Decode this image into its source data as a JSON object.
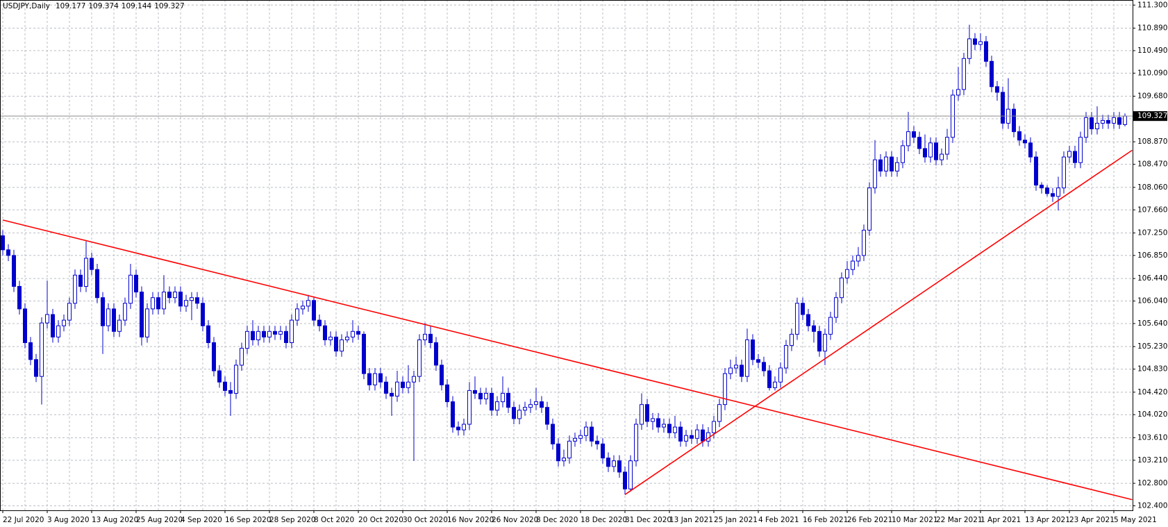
{
  "chart_data": {
    "type": "candlestick",
    "title": "USDJPY,Daily",
    "categories": [
      "22 Jul 2020",
      null,
      null,
      null,
      null,
      null,
      null,
      null,
      "3 Aug 2020",
      null,
      null,
      null,
      null,
      null,
      null,
      null,
      "13 Aug 2020",
      null,
      null,
      null,
      null,
      null,
      null,
      null,
      "25 Aug 2020",
      null,
      null,
      null,
      null,
      null,
      null,
      null,
      "4 Sep 2020",
      null,
      null,
      null,
      null,
      null,
      null,
      null,
      "16 Sep 2020",
      null,
      null,
      null,
      null,
      null,
      null,
      null,
      "28 Sep 2020",
      null,
      null,
      null,
      null,
      null,
      null,
      null,
      "8 Oct 2020",
      null,
      null,
      null,
      null,
      null,
      null,
      null,
      "20 Oct 2020",
      null,
      null,
      null,
      null,
      null,
      null,
      null,
      "30 Oct 2020",
      null,
      null,
      null,
      null,
      null,
      null,
      null,
      "16 Nov 2020",
      null,
      null,
      null,
      null,
      null,
      null,
      null,
      "26 Nov 2020",
      null,
      null,
      null,
      null,
      null,
      null,
      null,
      "8 Dec 2020",
      null,
      null,
      null,
      null,
      null,
      null,
      null,
      "18 Dec 2020",
      null,
      null,
      null,
      null,
      null,
      null,
      null,
      "31 Dec 2020",
      null,
      null,
      null,
      null,
      null,
      null,
      null,
      "13 Jan 2021",
      null,
      null,
      null,
      null,
      null,
      null,
      null,
      "25 Jan 2021",
      null,
      null,
      null,
      null,
      null,
      null,
      null,
      "4 Feb 2021",
      null,
      null,
      null,
      null,
      null,
      null,
      null,
      "16 Feb 2021",
      null,
      null,
      null,
      null,
      null,
      null,
      null,
      "26 Feb 2021",
      null,
      null,
      null,
      null,
      null,
      null,
      null,
      "10 Mar 2021",
      null,
      null,
      null,
      null,
      null,
      null,
      null,
      "22 Mar 2021",
      null,
      null,
      null,
      null,
      null,
      null,
      null,
      "1 Apr 2021",
      null,
      null,
      null,
      null,
      null,
      null,
      null,
      "13 Apr 2021",
      null,
      null,
      null,
      null,
      null,
      null,
      null,
      "23 Apr 2021",
      null,
      null,
      null,
      null,
      null,
      null,
      null,
      "5 May 2021",
      null,
      null
    ],
    "open": [
      107.2,
      106.95,
      106.85,
      106.3,
      105.9,
      105.3,
      105.0,
      104.7,
      105.65,
      105.8,
      105.4,
      105.6,
      105.7,
      106.0,
      106.5,
      106.3,
      106.8,
      106.6,
      106.1,
      105.6,
      105.9,
      105.5,
      105.7,
      106.0,
      106.5,
      106.2,
      105.4,
      105.9,
      106.1,
      105.9,
      106.2,
      106.1,
      106.2,
      105.95,
      106.05,
      106.1,
      106.0,
      105.6,
      105.3,
      104.8,
      104.6,
      104.45,
      104.4,
      104.9,
      105.2,
      105.5,
      105.35,
      105.5,
      105.4,
      105.5,
      105.45,
      105.5,
      105.3,
      105.7,
      105.9,
      105.95,
      106.05,
      105.7,
      105.6,
      105.35,
      105.4,
      105.15,
      105.35,
      105.4,
      105.5,
      105.45,
      104.75,
      104.55,
      104.75,
      104.6,
      104.4,
      104.35,
      104.6,
      104.5,
      104.6,
      104.7,
      105.35,
      105.45,
      105.3,
      104.9,
      104.55,
      104.25,
      103.8,
      103.75,
      103.85,
      104.45,
      104.4,
      104.3,
      104.4,
      104.1,
      104.25,
      104.4,
      104.15,
      103.95,
      104.1,
      104.15,
      104.2,
      104.25,
      104.15,
      103.85,
      103.5,
      103.2,
      103.25,
      103.55,
      103.6,
      103.65,
      103.8,
      103.55,
      103.5,
      103.25,
      103.1,
      103.2,
      103.0,
      102.7,
      103.2,
      103.85,
      104.2,
      103.9,
      103.95,
      103.8,
      103.85,
      103.7,
      103.8,
      103.55,
      103.65,
      103.6,
      103.75,
      103.55,
      103.7,
      103.9,
      104.2,
      104.75,
      104.85,
      104.9,
      104.7,
      105.35,
      105.0,
      104.95,
      104.8,
      104.5,
      104.6,
      104.85,
      105.25,
      105.45,
      106.0,
      105.8,
      105.6,
      105.5,
      105.15,
      105.45,
      105.75,
      106.1,
      106.45,
      106.6,
      106.75,
      106.85,
      107.3,
      108.05,
      108.55,
      108.35,
      108.6,
      108.35,
      108.5,
      108.8,
      109.05,
      108.95,
      108.75,
      108.6,
      108.85,
      108.55,
      108.65,
      108.95,
      109.7,
      109.8,
      110.35,
      110.7,
      110.6,
      110.65,
      110.3,
      109.85,
      109.75,
      109.2,
      109.45,
      109.05,
      108.9,
      108.85,
      108.6,
      108.1,
      108.05,
      107.95,
      107.9,
      108.05,
      108.6,
      108.7,
      108.5,
      108.95,
      109.3,
      109.1,
      109.2,
      109.25,
      109.2,
      109.3,
      109.177
    ],
    "high": [
      107.3,
      107.05,
      106.95,
      106.4,
      106.0,
      105.4,
      105.1,
      105.75,
      106.4,
      105.9,
      105.7,
      105.8,
      106.1,
      106.6,
      106.6,
      107.1,
      106.9,
      106.7,
      106.2,
      106.0,
      106.0,
      105.8,
      106.1,
      106.7,
      106.6,
      106.3,
      106.0,
      106.2,
      106.2,
      106.5,
      106.3,
      106.3,
      106.3,
      106.15,
      106.2,
      106.2,
      106.1,
      105.7,
      105.4,
      104.9,
      104.7,
      104.6,
      105.0,
      105.3,
      105.6,
      105.7,
      105.6,
      105.6,
      105.6,
      105.6,
      105.6,
      105.6,
      105.8,
      106.0,
      106.05,
      106.15,
      106.1,
      105.8,
      105.7,
      105.5,
      105.5,
      105.45,
      105.5,
      105.7,
      105.6,
      105.5,
      104.85,
      104.85,
      104.85,
      104.7,
      104.5,
      104.8,
      104.7,
      104.9,
      104.8,
      105.45,
      105.65,
      105.6,
      105.4,
      105.0,
      104.65,
      104.35,
      103.9,
      103.95,
      104.6,
      104.7,
      104.5,
      104.5,
      104.5,
      104.35,
      104.7,
      104.5,
      104.25,
      104.2,
      104.25,
      104.3,
      104.5,
      104.35,
      104.25,
      103.95,
      103.6,
      103.4,
      103.65,
      103.7,
      103.75,
      103.9,
      103.9,
      103.65,
      103.6,
      103.35,
      103.3,
      103.3,
      103.1,
      103.3,
      103.95,
      104.4,
      104.3,
      104.05,
      104.05,
      103.95,
      103.95,
      104.0,
      103.9,
      103.75,
      103.75,
      103.85,
      103.85,
      103.8,
      104.0,
      104.3,
      104.85,
      105.0,
      105.05,
      105.0,
      105.55,
      105.45,
      105.1,
      105.05,
      104.9,
      104.7,
      104.95,
      105.35,
      105.55,
      106.1,
      106.1,
      105.9,
      105.7,
      105.6,
      105.55,
      105.85,
      106.2,
      106.55,
      106.75,
      106.85,
      107.0,
      107.4,
      108.15,
      108.9,
      108.65,
      108.7,
      108.7,
      108.6,
      108.9,
      109.4,
      109.15,
      109.05,
      109.0,
      108.95,
      108.95,
      108.75,
      109.1,
      109.8,
      110.2,
      110.45,
      110.95,
      110.8,
      110.8,
      110.75,
      110.4,
      109.95,
      109.85,
      110.0,
      109.55,
      109.15,
      109.0,
      108.95,
      108.7,
      108.15,
      108.1,
      108.05,
      108.25,
      108.7,
      108.8,
      108.8,
      109.05,
      109.4,
      109.4,
      109.5,
      109.35,
      109.35,
      109.4,
      109.4,
      109.374
    ],
    "low": [
      106.85,
      106.75,
      106.2,
      105.8,
      105.2,
      104.9,
      104.6,
      104.2,
      105.55,
      105.3,
      105.3,
      105.5,
      105.6,
      105.9,
      106.2,
      106.2,
      106.5,
      106.0,
      105.1,
      105.5,
      105.4,
      105.4,
      105.6,
      105.9,
      106.1,
      105.25,
      105.3,
      105.8,
      105.8,
      105.8,
      106.0,
      106.0,
      105.85,
      105.85,
      105.7,
      105.9,
      105.5,
      105.2,
      104.7,
      104.5,
      104.35,
      104.0,
      104.3,
      104.8,
      105.1,
      105.25,
      105.25,
      105.3,
      105.3,
      105.35,
      105.35,
      105.2,
      105.2,
      105.6,
      105.8,
      105.85,
      105.6,
      105.5,
      105.25,
      105.25,
      105.05,
      105.05,
      105.3,
      105.3,
      105.35,
      104.65,
      104.45,
      104.45,
      104.5,
      104.3,
      104.0,
      104.25,
      104.4,
      104.4,
      103.2,
      104.6,
      105.25,
      105.2,
      104.8,
      104.45,
      104.15,
      103.7,
      103.65,
      103.65,
      103.75,
      104.3,
      104.2,
      104.2,
      104.0,
      104.0,
      104.15,
      104.05,
      103.85,
      103.85,
      104.0,
      104.05,
      104.1,
      104.05,
      103.75,
      103.4,
      103.1,
      103.1,
      103.15,
      103.45,
      103.5,
      103.55,
      103.45,
      103.4,
      103.15,
      103.0,
      103.0,
      102.9,
      102.6,
      102.65,
      103.1,
      103.75,
      103.8,
      103.75,
      103.7,
      103.7,
      103.6,
      103.6,
      103.45,
      103.45,
      103.5,
      103.5,
      103.45,
      103.45,
      103.6,
      103.8,
      104.1,
      104.65,
      104.75,
      104.6,
      104.6,
      104.9,
      104.85,
      104.7,
      104.45,
      104.45,
      104.5,
      104.75,
      105.15,
      105.35,
      105.7,
      105.5,
      105.3,
      105.05,
      104.9,
      105.35,
      105.65,
      106.0,
      106.35,
      106.5,
      106.65,
      106.75,
      107.2,
      107.95,
      108.25,
      108.25,
      108.25,
      108.25,
      108.4,
      108.7,
      108.85,
      108.65,
      108.5,
      108.5,
      108.45,
      108.45,
      108.55,
      108.85,
      109.6,
      109.7,
      110.25,
      110.5,
      110.5,
      110.2,
      109.75,
      109.6,
      109.1,
      109.1,
      108.95,
      108.8,
      108.75,
      108.5,
      108.0,
      107.95,
      107.9,
      107.8,
      107.65,
      107.95,
      108.5,
      108.4,
      108.4,
      108.85,
      109.0,
      109.0,
      109.1,
      109.1,
      109.1,
      109.1,
      109.144
    ],
    "close": [
      106.95,
      106.85,
      106.3,
      105.9,
      105.3,
      105.0,
      104.7,
      105.65,
      105.8,
      105.4,
      105.6,
      105.7,
      106.0,
      106.5,
      106.3,
      106.8,
      106.6,
      106.1,
      105.6,
      105.9,
      105.5,
      105.7,
      106.0,
      106.5,
      106.2,
      105.4,
      105.9,
      106.1,
      105.9,
      106.2,
      106.1,
      106.2,
      105.95,
      106.05,
      106.1,
      106.0,
      105.6,
      105.3,
      104.8,
      104.6,
      104.45,
      104.4,
      104.9,
      105.2,
      105.5,
      105.35,
      105.5,
      105.4,
      105.5,
      105.45,
      105.5,
      105.3,
      105.7,
      105.9,
      105.95,
      106.05,
      105.7,
      105.6,
      105.35,
      105.4,
      105.15,
      105.35,
      105.4,
      105.5,
      105.45,
      104.75,
      104.55,
      104.75,
      104.6,
      104.4,
      104.35,
      104.6,
      104.5,
      104.6,
      104.7,
      105.35,
      105.45,
      105.3,
      104.9,
      104.55,
      104.25,
      103.8,
      103.75,
      103.85,
      104.45,
      104.4,
      104.3,
      104.4,
      104.1,
      104.25,
      104.4,
      104.15,
      103.95,
      104.1,
      104.15,
      104.2,
      104.25,
      104.15,
      103.85,
      103.5,
      103.2,
      103.25,
      103.55,
      103.6,
      103.65,
      103.8,
      103.55,
      103.5,
      103.25,
      103.1,
      103.2,
      103.0,
      102.7,
      103.2,
      103.85,
      104.2,
      103.9,
      103.95,
      103.8,
      103.85,
      103.7,
      103.8,
      103.55,
      103.65,
      103.6,
      103.75,
      103.55,
      103.7,
      103.9,
      104.2,
      104.75,
      104.85,
      104.9,
      104.7,
      105.35,
      105.0,
      104.95,
      104.8,
      104.5,
      104.6,
      104.85,
      105.25,
      105.45,
      106.0,
      105.8,
      105.6,
      105.5,
      105.15,
      105.45,
      105.75,
      106.1,
      106.45,
      106.6,
      106.75,
      106.85,
      107.3,
      108.05,
      108.55,
      108.35,
      108.6,
      108.35,
      108.5,
      108.8,
      109.05,
      108.95,
      108.75,
      108.6,
      108.85,
      108.55,
      108.65,
      108.95,
      109.7,
      109.8,
      110.35,
      110.7,
      110.6,
      110.65,
      110.3,
      109.85,
      109.75,
      109.2,
      109.45,
      109.05,
      108.9,
      108.85,
      108.6,
      108.1,
      108.05,
      107.95,
      107.9,
      108.05,
      108.6,
      108.7,
      108.5,
      108.95,
      109.3,
      109.1,
      109.2,
      109.25,
      109.2,
      109.3,
      109.18,
      109.327
    ],
    "color": "#0000cd",
    "ylim": [
      102.32,
      111.39
    ],
    "yticks": [
      {
        "value": 102.4,
        "label": "102.400"
      },
      {
        "value": 102.8,
        "label": "102.800"
      },
      {
        "value": 103.21,
        "label": "103.210"
      },
      {
        "value": 103.61,
        "label": "103.610"
      },
      {
        "value": 104.02,
        "label": "104.020"
      },
      {
        "value": 104.42,
        "label": "104.420"
      },
      {
        "value": 104.83,
        "label": "104.830"
      },
      {
        "value": 105.23,
        "label": "105.230"
      },
      {
        "value": 105.64,
        "label": "105.640"
      },
      {
        "value": 106.04,
        "label": "106.040"
      },
      {
        "value": 106.44,
        "label": "106.440"
      },
      {
        "value": 106.85,
        "label": "106.850"
      },
      {
        "value": 107.25,
        "label": "107.250"
      },
      {
        "value": 107.66,
        "label": "107.660"
      },
      {
        "value": 108.06,
        "label": "108.060"
      },
      {
        "value": 108.47,
        "label": "108.470"
      },
      {
        "value": 108.87,
        "label": "108.870"
      },
      {
        "value": 109.28,
        "label": "109.280"
      },
      {
        "value": 109.68,
        "label": "109.680"
      },
      {
        "value": 110.09,
        "label": "110.090"
      },
      {
        "value": 110.49,
        "label": "110.490"
      },
      {
        "value": 110.89,
        "label": "110.890"
      },
      {
        "value": 111.3,
        "label": "111.300"
      }
    ],
    "grid": true,
    "trendlines": [
      {
        "color": "#ff0000",
        "x": [
          0,
          203.3
        ],
        "y": [
          107.48,
          102.51
        ]
      },
      {
        "color": "#ff0000",
        "x": [
          112,
          203.3
        ],
        "y": [
          102.6,
          108.72
        ]
      }
    ]
  }
}
